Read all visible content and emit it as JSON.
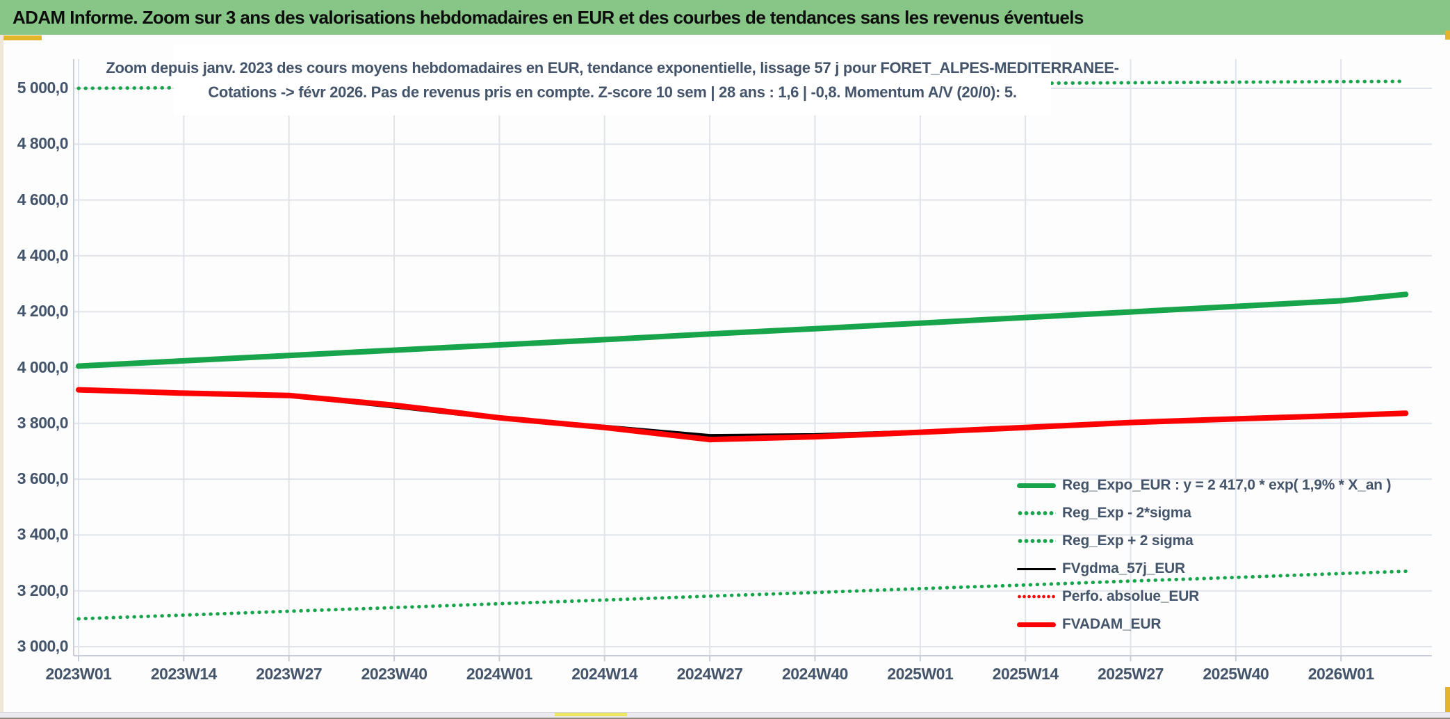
{
  "banner": {
    "title": "ADAM Informe. Zoom sur 3 ans des valorisations hebdomadaires en EUR et des courbes de tendances sans les revenus éventuels"
  },
  "chart_title": {
    "line1": "Zoom depuis janv. 2023 des cours moyens hebdomadaires en EUR, tendance exponentielle, lissage 57 j pour FORET_ALPES-MEDITERRANEE-",
    "line2": "Cotations -> févr 2026. Pas de revenus pris en compte. Z-score 10 sem | 28 ans : 1,6 | -0,8. Momentum A/V (20/0): 5."
  },
  "chart_data": {
    "type": "line",
    "x_unit": "weeks since 2023W01",
    "x": [
      0,
      13,
      26,
      39,
      52,
      65,
      78,
      91,
      104,
      117,
      130,
      143,
      156,
      164
    ],
    "x_tick_labels": [
      "2023W01",
      "2023W14",
      "2023W27",
      "2023W40",
      "2024W01",
      "2024W14",
      "2024W27",
      "2024W40",
      "2025W01",
      "2025W14",
      "2025W27",
      "2025W40",
      "2026W01"
    ],
    "y_ticks": [
      {
        "value": 5000,
        "label": "5 000,0"
      },
      {
        "value": 4800,
        "label": "4 800,0"
      },
      {
        "value": 4600,
        "label": "4 600,0"
      },
      {
        "value": 4400,
        "label": "4 400,0"
      },
      {
        "value": 4200,
        "label": "4 200,0"
      },
      {
        "value": 4000,
        "label": "4 000,0"
      },
      {
        "value": 3800,
        "label": "3 800,0"
      },
      {
        "value": 3600,
        "label": "3 600,0"
      },
      {
        "value": 3400,
        "label": "3 400,0"
      },
      {
        "value": 3200,
        "label": "3 200,0"
      },
      {
        "value": 3000,
        "label": "3 000,0"
      }
    ],
    "ylim": [
      3000,
      5000
    ],
    "grid": true,
    "legend_position": "inside-lower-right",
    "series": [
      {
        "name": "Reg_Exp + 2 sigma",
        "color": "#17a44b",
        "style": "dotted",
        "width": 5,
        "values": [
          5000,
          5002,
          5004,
          5006,
          5008,
          5010,
          5012,
          5014,
          5016,
          5018,
          5020,
          5022,
          5024,
          5025
        ]
      },
      {
        "name": "Reg_Exp - 2*sigma",
        "color": "#17a44b",
        "style": "dotted",
        "width": 5,
        "values": [
          3100,
          3113,
          3127,
          3140,
          3154,
          3167,
          3181,
          3194,
          3208,
          3221,
          3235,
          3248,
          3262,
          3270
        ]
      },
      {
        "name": "Reg_Expo_EUR : y = 2 417,0 * exp( 1,9% * X_an )",
        "color": "#17a44b",
        "style": "solid",
        "width": 8,
        "values": [
          4005,
          4024,
          4043,
          4062,
          4081,
          4100,
          4120,
          4139,
          4159,
          4179,
          4199,
          4219,
          4239,
          4262
        ]
      },
      {
        "name": "FVgdma_57j_EUR",
        "color": "#000000",
        "style": "solid",
        "width": 4,
        "values": [
          3921,
          3909,
          3897,
          3858,
          3816,
          3790,
          3757,
          3760,
          3772,
          3787,
          3804,
          3817,
          3829,
          3835
        ]
      },
      {
        "name": "Perfo. absolue_EUR",
        "color": "#fe0000",
        "style": "dotted",
        "width": 4,
        "values": [
          3920,
          3908,
          3900,
          3865,
          3820,
          3785,
          3742,
          3752,
          3768,
          3785,
          3803,
          3816,
          3828,
          3836
        ]
      },
      {
        "name": "FVADAM_EUR",
        "color": "#fe0000",
        "style": "solid",
        "width": 8,
        "values": [
          3920,
          3908,
          3900,
          3865,
          3820,
          3785,
          3742,
          3752,
          3768,
          3785,
          3803,
          3816,
          3828,
          3836
        ]
      }
    ],
    "legend_order": [
      2,
      1,
      0,
      3,
      4,
      5
    ]
  },
  "colors": {
    "banner_bg": "#87c687",
    "text": "#44546a",
    "gridline": "#e0e3e9",
    "axis_line": "#c7ccd6",
    "green_line": "#17a44b",
    "red_line": "#fe0000",
    "black_line": "#000000",
    "gold_accent": "#e4b42c",
    "scroll_thumb": "#ebe763"
  }
}
